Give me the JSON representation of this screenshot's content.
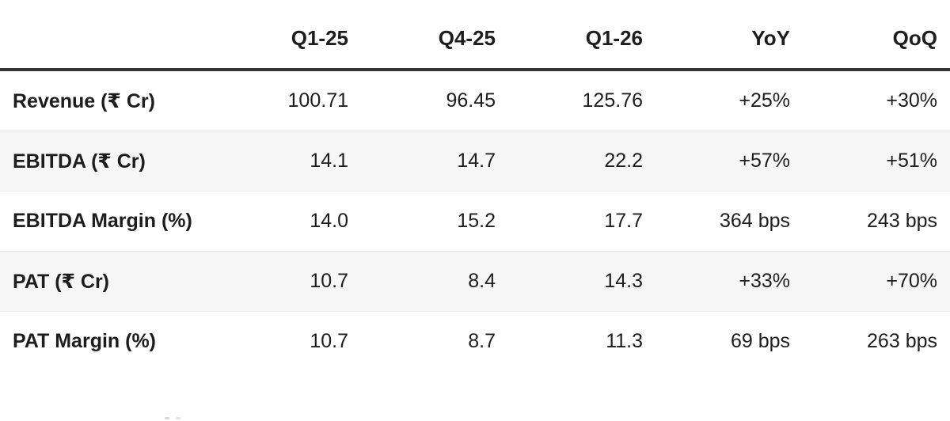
{
  "chart_data": {
    "type": "table",
    "corner_label": "",
    "columns": [
      "Q1-25",
      "Q4-25",
      "Q1-26",
      "YoY",
      "QoQ"
    ],
    "rows": [
      {
        "label": "Revenue (₹ Cr)",
        "values": [
          "100.71",
          "96.45",
          "125.76",
          "+25%",
          "+30%"
        ]
      },
      {
        "label": "EBITDA (₹ Cr)",
        "values": [
          "14.1",
          "14.7",
          "22.2",
          "+57%",
          "+51%"
        ]
      },
      {
        "label": "EBITDA Margin (%)",
        "values": [
          "14.0",
          "15.2",
          "17.7",
          "364 bps",
          "243 bps"
        ]
      },
      {
        "label": "PAT (₹ Cr)",
        "values": [
          "10.7",
          "8.4",
          "14.3",
          "+33%",
          "+70%"
        ]
      },
      {
        "label": "PAT Margin (%)",
        "values": [
          "10.7",
          "8.7",
          "11.3",
          "69 bps",
          "263 bps"
        ]
      }
    ],
    "layout_hints": {
      "label_column_alignment": "left",
      "value_column_alignment": "right",
      "striped_rows": [
        1,
        3
      ]
    }
  },
  "colors": {
    "background": "#ffffff",
    "text": "#1d1d1d",
    "header_rule": "#343434",
    "row_separator": "#e7e7e7",
    "stripe_background": "#f6f6f6"
  }
}
